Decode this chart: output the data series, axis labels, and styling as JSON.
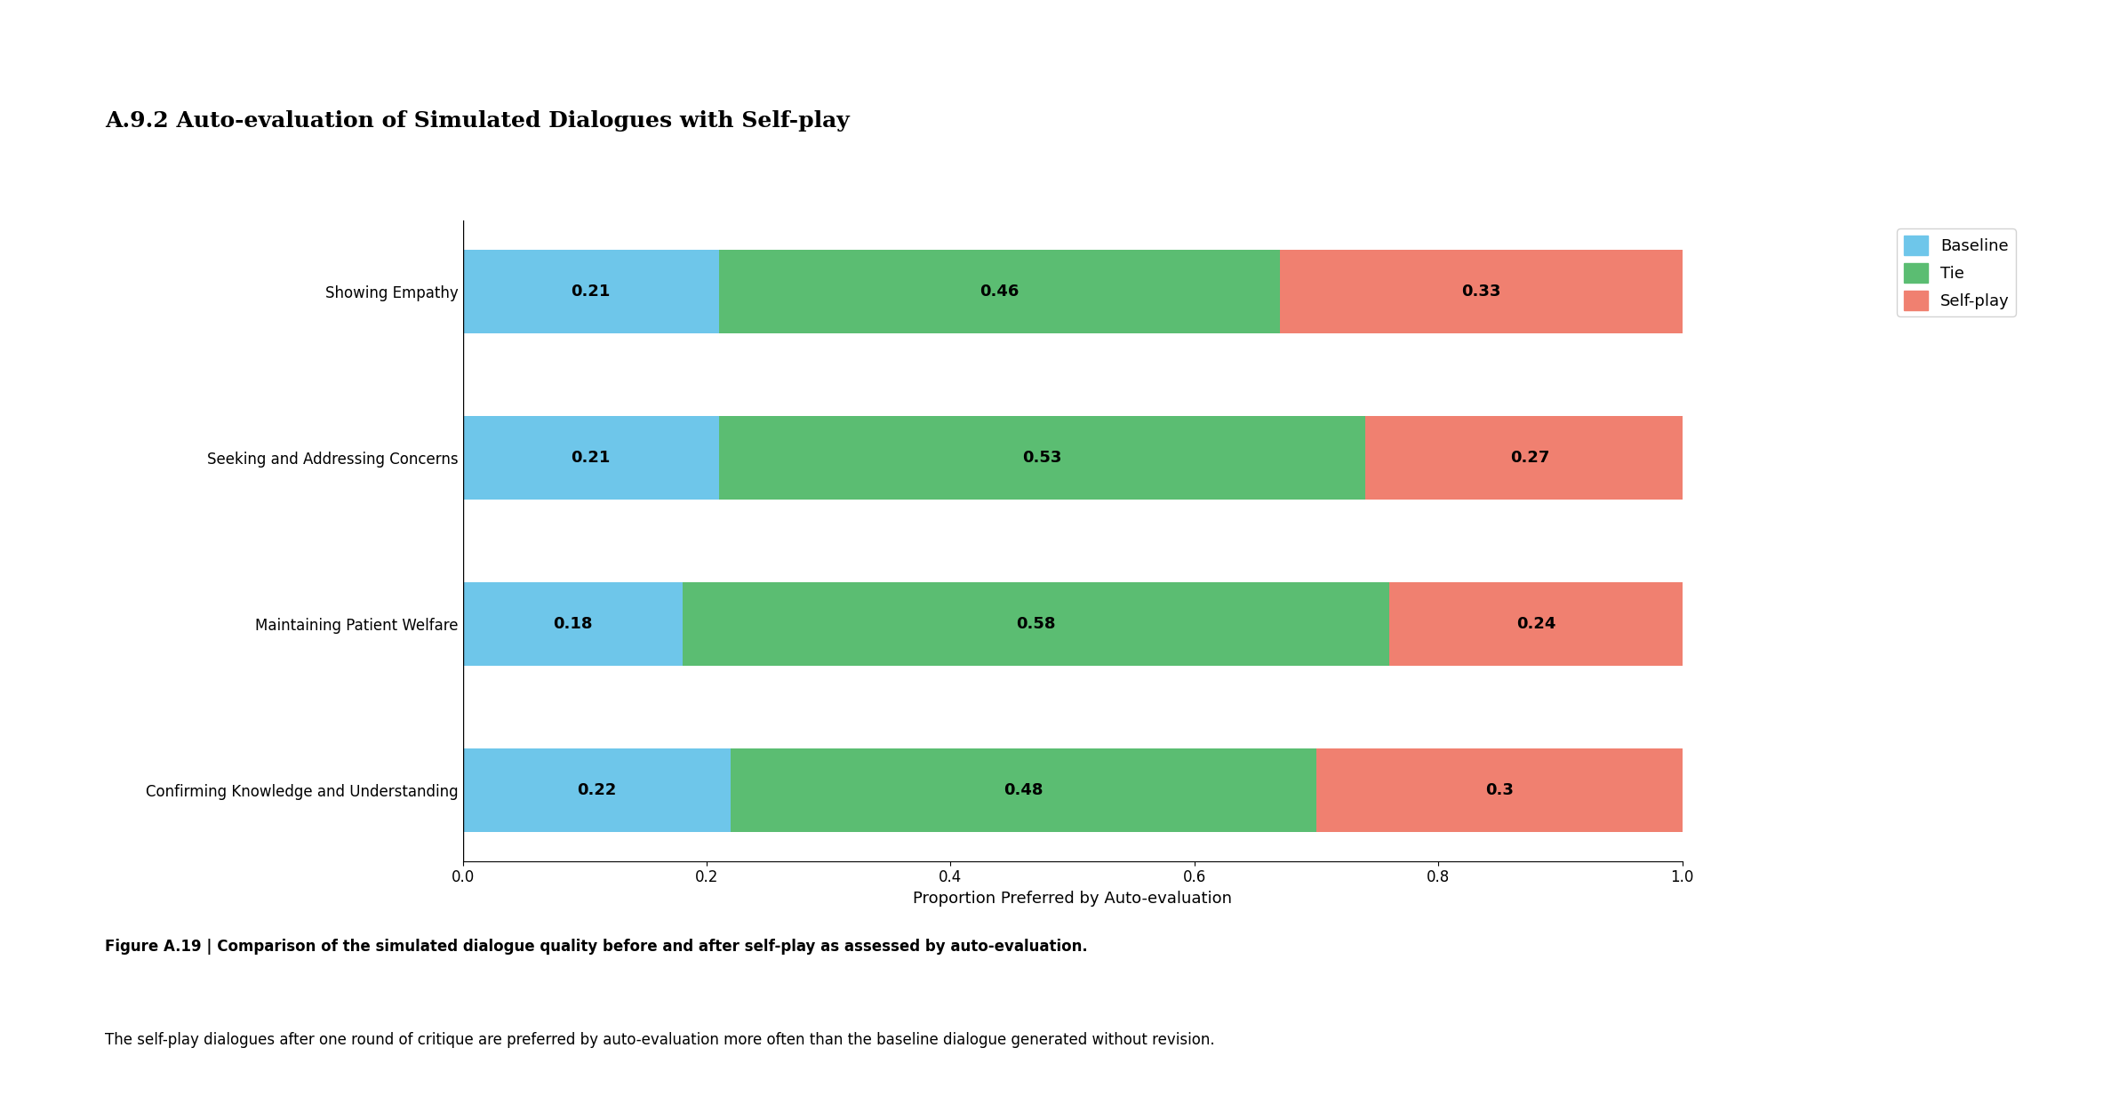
{
  "title": "A.9.2 Auto-evaluation of Simulated Dialogues with Self-play",
  "categories": [
    "Confirming Knowledge and Understanding",
    "Maintaining Patient Welfare",
    "Seeking and Addressing Concerns",
    "Showing Empathy"
  ],
  "baseline": [
    0.22,
    0.18,
    0.21,
    0.21
  ],
  "tie": [
    0.48,
    0.58,
    0.53,
    0.46
  ],
  "selfplay": [
    0.3,
    0.24,
    0.27,
    0.33
  ],
  "baseline_color": "#6EC6EA",
  "tie_color": "#5BBD72",
  "selfplay_color": "#F08070",
  "xlabel": "Proportion Preferred by Auto-evaluation",
  "xlim": [
    0.0,
    1.0
  ],
  "xticks": [
    0.0,
    0.2,
    0.4,
    0.6,
    0.8,
    1.0
  ],
  "legend_labels": [
    "Baseline",
    "Tie",
    "Self-play"
  ],
  "bar_height": 0.5,
  "label_fontsize": 13,
  "tick_fontsize": 12,
  "title_fontsize": 18,
  "caption_bold": "Figure A.19 | Comparison of the simulated dialogue quality before and after self-play as assessed by auto-evaluation.",
  "caption_normal": " The self-play dialogues after one round of critique are preferred by auto-evaluation more often than the baseline dialogue generated without revision.",
  "background_color": "#ffffff"
}
